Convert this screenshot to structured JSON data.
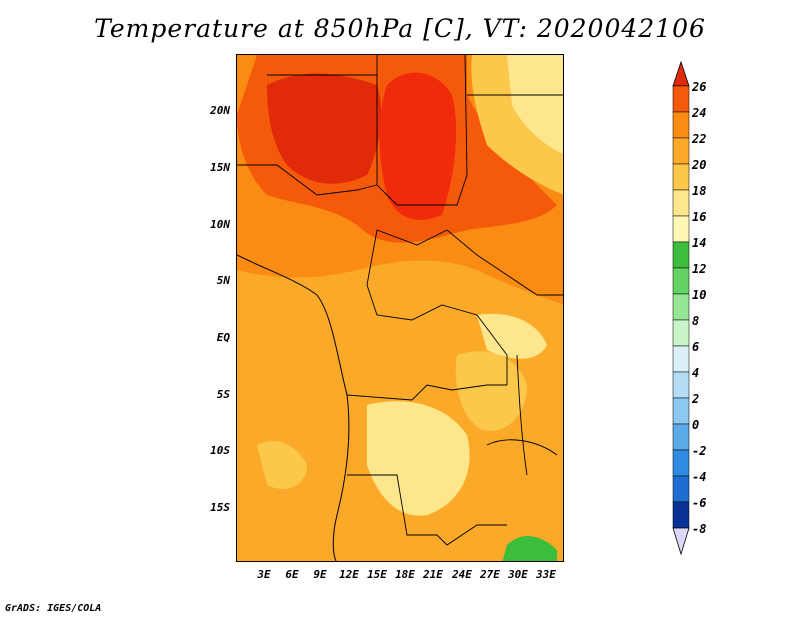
{
  "title": "Temperature at 850hPa [C], VT: 2020042106",
  "credit": "GrADS: IGES/COLA",
  "lat_labels": [
    "20N",
    "15N",
    "10N",
    "5N",
    "EQ",
    "5S",
    "10S",
    "15S"
  ],
  "lon_labels": [
    "3E",
    "6E",
    "9E",
    "12E",
    "15E",
    "18E",
    "21E",
    "24E",
    "27E",
    "30E",
    "33E"
  ],
  "colorbar": {
    "labels": [
      "26",
      "24",
      "22",
      "20",
      "18",
      "16",
      "14",
      "12",
      "10",
      "8",
      "6",
      "4",
      "2",
      "0",
      "-2",
      "-4",
      "-6",
      "-8"
    ],
    "colors": [
      "#f02a0a",
      "#f55a0a",
      "#fa8c14",
      "#faaa28",
      "#fbc84c",
      "#fde68c",
      "#fdf6b4",
      "#3cbe3c",
      "#64d264",
      "#96e696",
      "#c8f5c8",
      "#dcf0f8",
      "#b4dcf5",
      "#8cc8f0",
      "#5aaae6",
      "#2d8ce1",
      "#1e6ed2",
      "#1450b4",
      "#0a3296",
      "#000a78"
    ]
  }
}
